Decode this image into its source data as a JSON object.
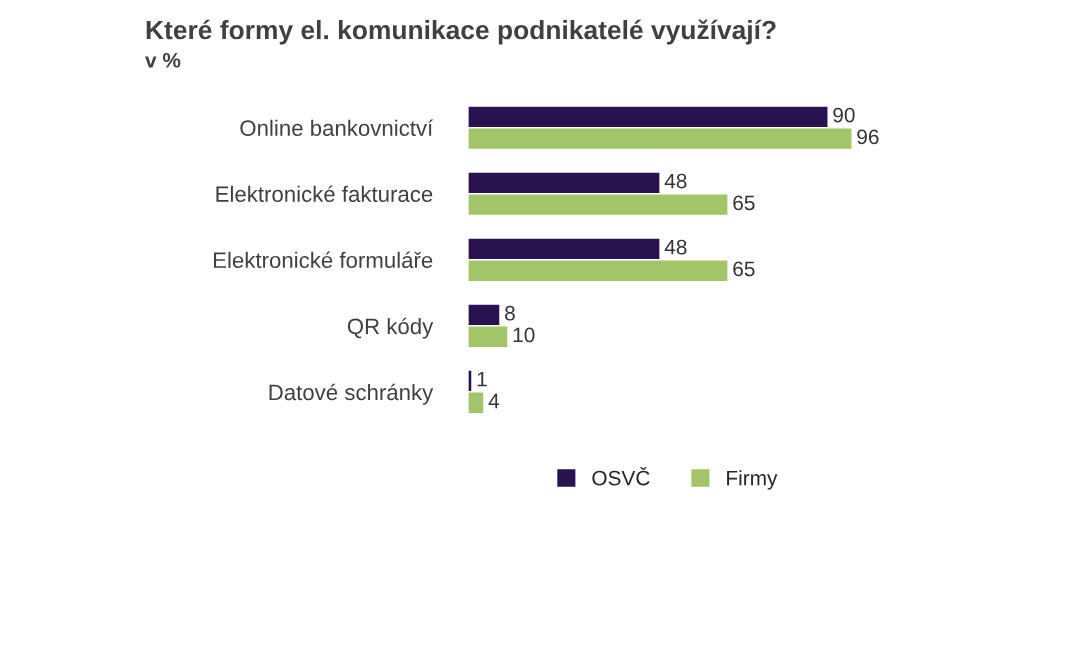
{
  "chart_data": {
    "type": "bar",
    "orientation": "horizontal",
    "title": "Které formy el. komunikace podnikatelé využívají?",
    "subtitle": "v %",
    "categories": [
      "Online bankovnictví",
      "Elektronické fakturace",
      "Elektronické formuláře",
      "QR kódy",
      "Datové schránky"
    ],
    "series": [
      {
        "name": "OSVČ",
        "color": "#2a1150",
        "values": [
          90,
          48,
          48,
          8,
          1
        ]
      },
      {
        "name": "Firmy",
        "color": "#a3c56a",
        "values": [
          96,
          65,
          65,
          10,
          4
        ]
      }
    ],
    "data_labels": true,
    "legend": "bottom",
    "grid": false
  }
}
